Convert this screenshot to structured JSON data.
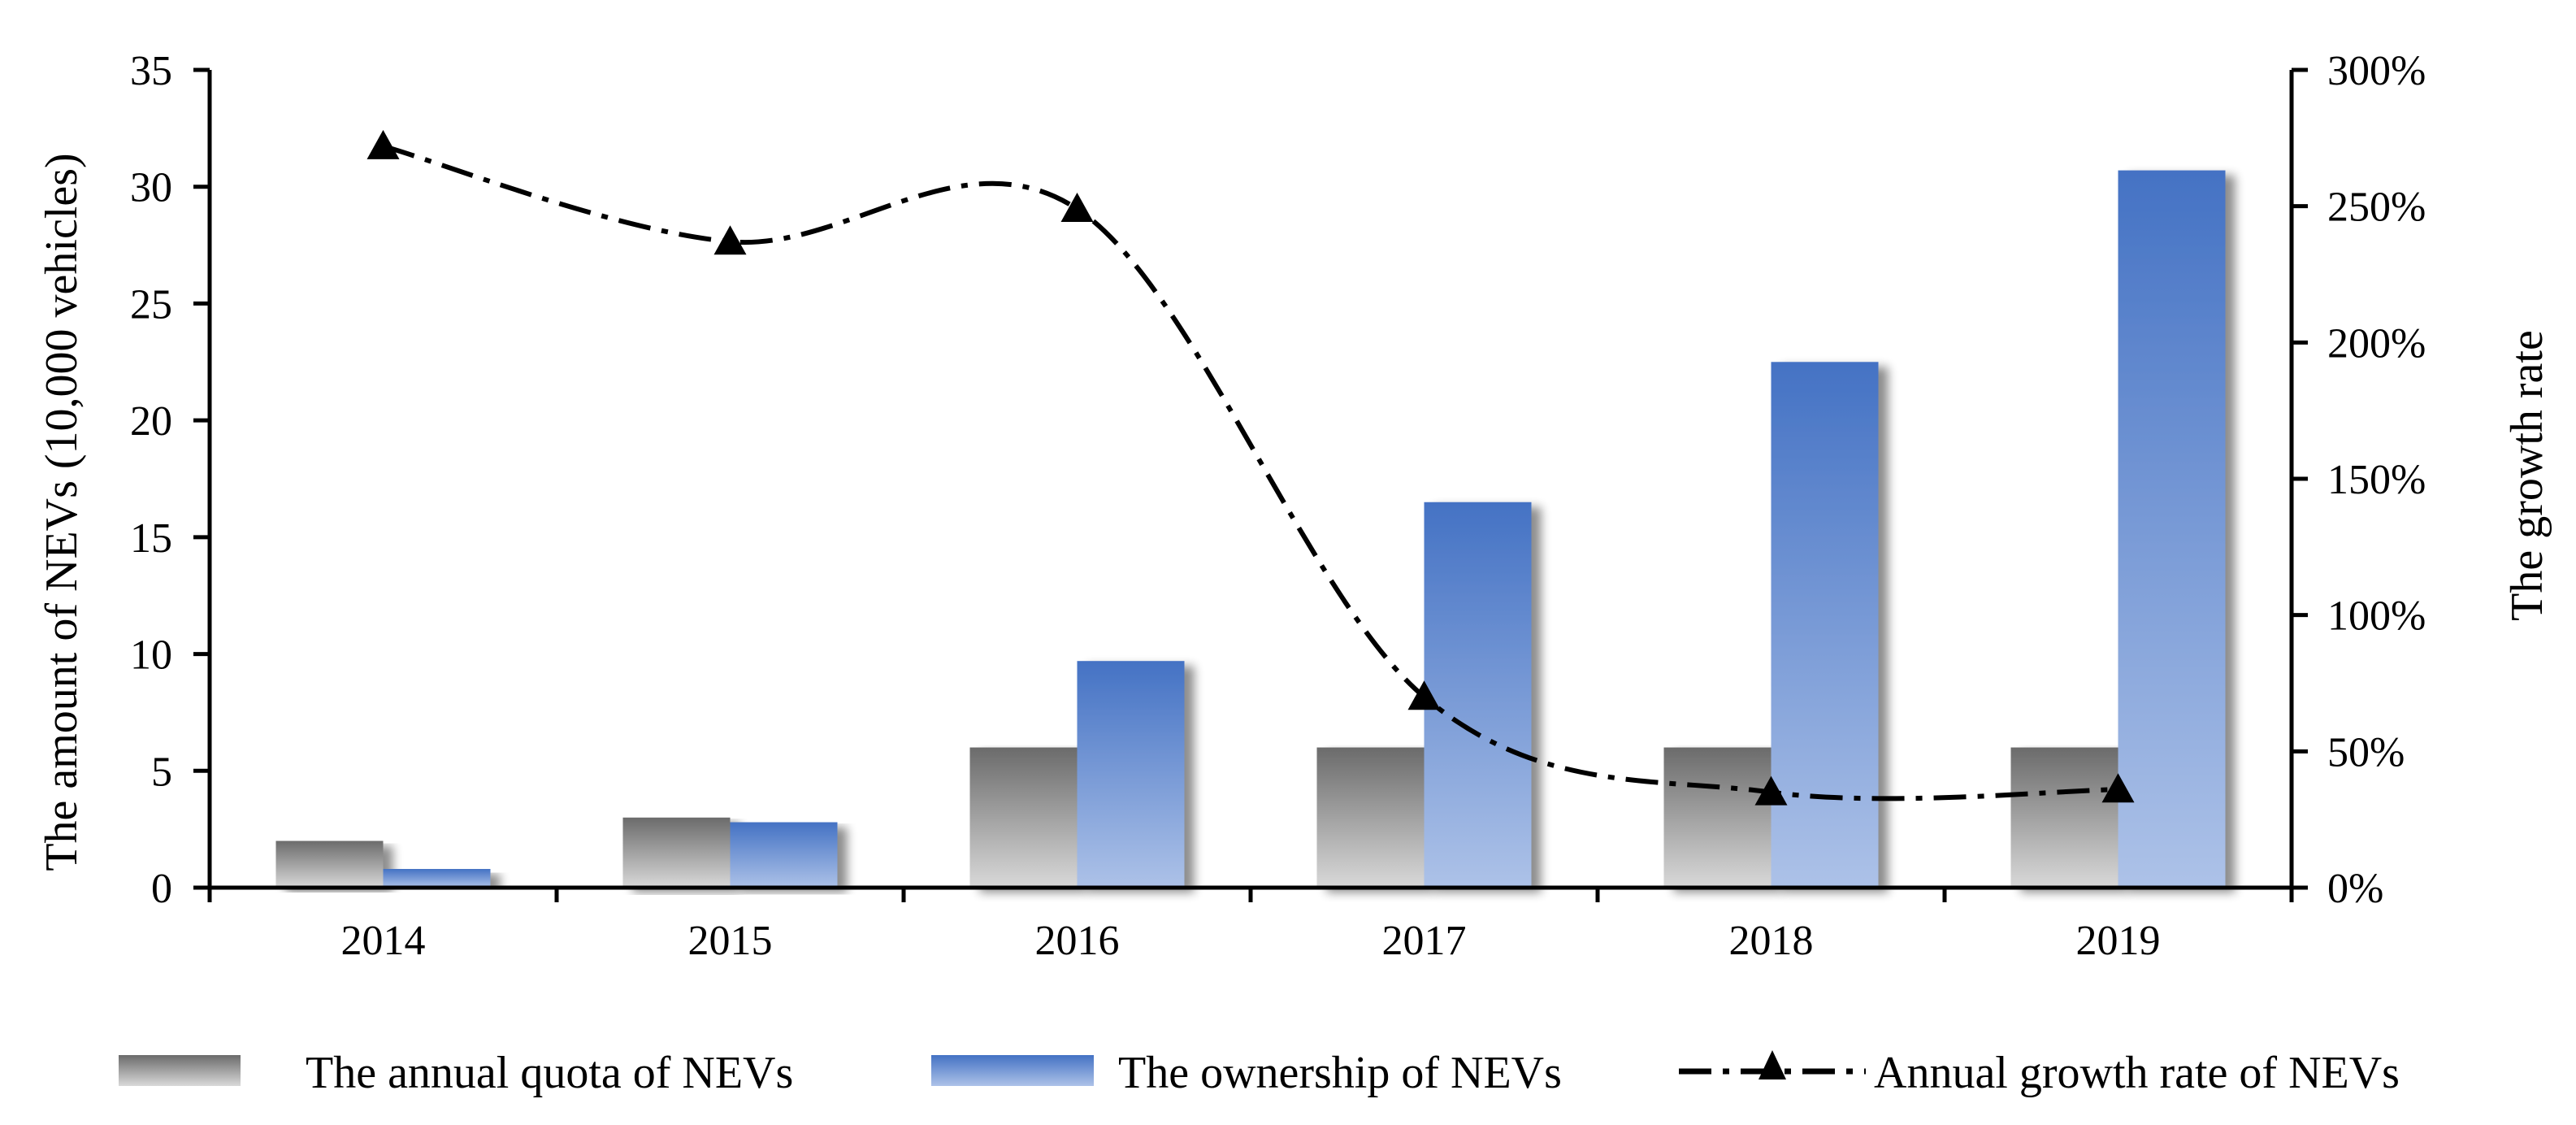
{
  "chart_data": {
    "type": "bar",
    "categories": [
      "2014",
      "2015",
      "2016",
      "2017",
      "2018",
      "2019"
    ],
    "series": [
      {
        "name": "The annual quota of NEVs",
        "kind": "bar",
        "axis": "left",
        "values": [
          2,
          3,
          6,
          6,
          6,
          6
        ]
      },
      {
        "name": "The ownership of NEVs",
        "kind": "bar",
        "axis": "left",
        "values": [
          0.8,
          2.8,
          9.7,
          16.5,
          22.5,
          30.7
        ]
      },
      {
        "name": "Annual growth rate of NEVs",
        "kind": "line",
        "axis": "right",
        "values": [
          272,
          237,
          249,
          70,
          35,
          36
        ]
      }
    ],
    "ylabel": "The amount of NEVs (10,000 vehicles)",
    "y2label": "The growth rate",
    "ylim": [
      0,
      35
    ],
    "y2lim": [
      0,
      300
    ],
    "yticks": [
      "0",
      "5",
      "10",
      "15",
      "20",
      "25",
      "30",
      "35"
    ],
    "y2ticks": [
      "0%",
      "50%",
      "100%",
      "150%",
      "200%",
      "250%",
      "300%"
    ],
    "legend_position": "bottom",
    "grid": false
  },
  "colors": {
    "quota_dark": "#6b6b6b",
    "quota_light": "#d6d6d6",
    "own_dark": "#4472c4",
    "own_light": "#a9bfe6",
    "line": "#000000"
  }
}
